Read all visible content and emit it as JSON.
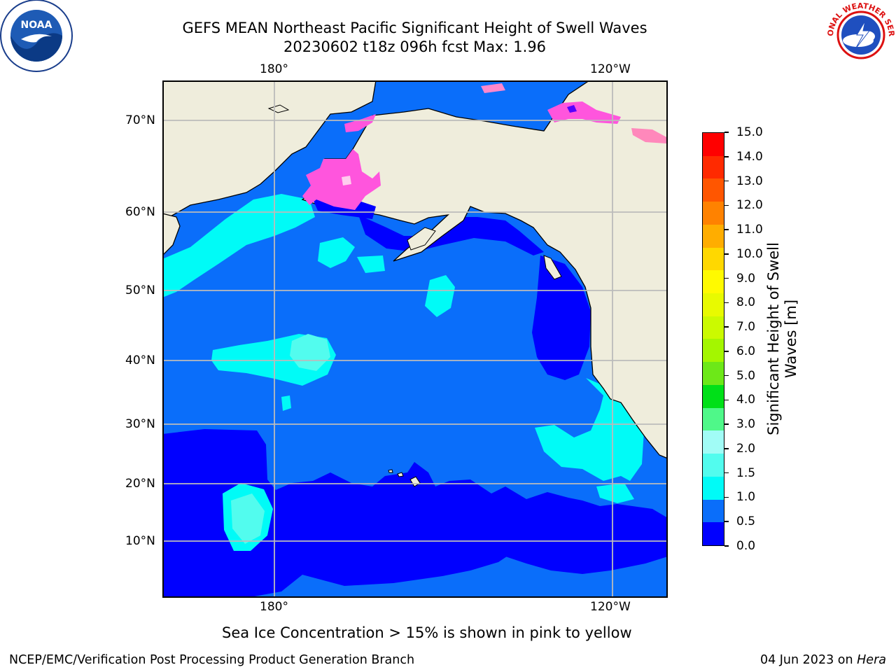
{
  "header": {
    "title_line1": "GEFS MEAN Northeast Pacific Significant Height of Swell Waves",
    "title_line2": "20230602 t18z 096h fcst   Max: 1.96"
  },
  "logos": {
    "left": {
      "name": "noaa-logo",
      "text": "NOAA"
    },
    "right": {
      "name": "national-weather-service-logo",
      "text": "NATIONAL WEATHER SERVICE"
    }
  },
  "map": {
    "region": "Northeast Pacific",
    "lon_labels_top": [
      "180°",
      "120°W"
    ],
    "lon_labels_bottom": [
      "180°",
      "120°W"
    ],
    "lat_labels": [
      "70°N",
      "60°N",
      "50°N",
      "40°N",
      "30°N",
      "20°N",
      "10°N"
    ],
    "colors": {
      "land": "#efeddc",
      "ocean_0_0_5": "#0000ff",
      "ocean_0_5_1_0": "#0a6efa",
      "ocean_1_0_1_5": "#00fbf7",
      "ocean_1_5_2_0": "#52fcee",
      "sea_ice": "#ff55dd",
      "grid": "#bbbbbb"
    }
  },
  "colorbar": {
    "ticks": [
      "15.0",
      "14.0",
      "13.0",
      "12.0",
      "11.0",
      "10.0",
      "9.0",
      "8.0",
      "7.0",
      "6.0",
      "5.0",
      "4.0",
      "3.0",
      "2.0",
      "1.5",
      "1.0",
      "0.5",
      "0.0"
    ],
    "colors_top_to_bottom": [
      "#ff0000",
      "#ff2a00",
      "#ff5600",
      "#ff8200",
      "#ffad00",
      "#ffd800",
      "#fffa00",
      "#e8fa00",
      "#cbfa00",
      "#a4f600",
      "#6de818",
      "#00e018",
      "#4ff889",
      "#a1fcf6",
      "#52fcee",
      "#00fbf7",
      "#0a6efa",
      "#0000ff"
    ],
    "label_line1": "Significant Height of Swell",
    "label_line2": "Waves [m]"
  },
  "note": "Sea Ice Concentration > 15% is shown in pink to yellow",
  "footer": {
    "left": "NCEP/EMC/Verification Post Processing Product Generation Branch",
    "right_prefix": "04 Jun 2023 on ",
    "right_host": "Hera"
  }
}
